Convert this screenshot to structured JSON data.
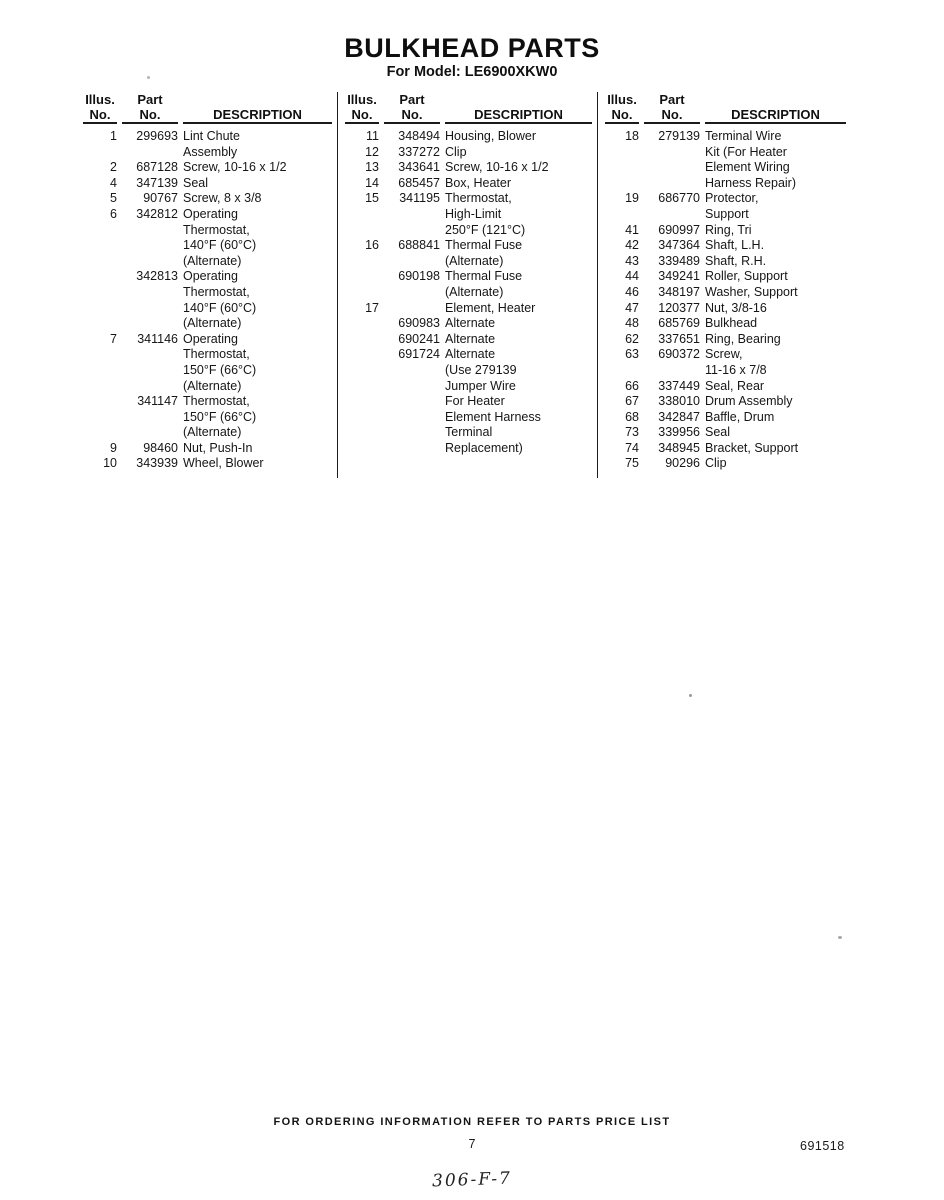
{
  "title": "BULKHEAD PARTS",
  "subtitle": "For Model: LE6900XKW0",
  "table": {
    "headers": {
      "illus_line1": "Illus.",
      "illus_line2": "No.",
      "part_line1": "Part",
      "part_line2": "No.",
      "description": "DESCRIPTION"
    },
    "columns": [
      {
        "rows": [
          {
            "illus": "1",
            "part": "299693",
            "desc": [
              "Lint Chute",
              "Assembly"
            ]
          },
          {
            "illus": "2",
            "part": "687128",
            "desc": [
              "Screw, 10-16 x 1/2"
            ]
          },
          {
            "illus": "4",
            "part": "347139",
            "desc": [
              "Seal"
            ]
          },
          {
            "illus": "5",
            "part": "90767",
            "desc": [
              "Screw, 8 x 3/8"
            ]
          },
          {
            "illus": "6",
            "part": "342812",
            "desc": [
              "Operating",
              "Thermostat,",
              "140°F (60°C)",
              "(Alternate)"
            ]
          },
          {
            "illus": "",
            "part": "342813",
            "desc": [
              "Operating",
              "Thermostat,",
              "140°F (60°C)",
              "(Alternate)"
            ]
          },
          {
            "illus": "7",
            "part": "341146",
            "desc": [
              "Operating",
              "Thermostat,",
              "150°F (66°C)",
              "(Alternate)"
            ]
          },
          {
            "illus": "",
            "part": "341147",
            "desc": [
              "Thermostat,",
              "150°F (66°C)",
              "(Alternate)"
            ]
          },
          {
            "illus": "9",
            "part": "98460",
            "desc": [
              "Nut, Push-In"
            ]
          },
          {
            "illus": "10",
            "part": "343939",
            "desc": [
              "Wheel, Blower"
            ]
          }
        ]
      },
      {
        "rows": [
          {
            "illus": "11",
            "part": "348494",
            "desc": [
              "Housing, Blower"
            ]
          },
          {
            "illus": "12",
            "part": "337272",
            "desc": [
              "Clip"
            ]
          },
          {
            "illus": "13",
            "part": "343641",
            "desc": [
              "Screw, 10-16 x 1/2"
            ]
          },
          {
            "illus": "14",
            "part": "685457",
            "desc": [
              "Box, Heater"
            ]
          },
          {
            "illus": "15",
            "part": "341195",
            "desc": [
              "Thermostat,",
              "High-Limit",
              "250°F (121°C)"
            ]
          },
          {
            "illus": "16",
            "part": "688841",
            "desc": [
              "Thermal Fuse",
              "(Alternate)"
            ]
          },
          {
            "illus": "",
            "part": "690198",
            "desc": [
              "Thermal Fuse",
              "(Alternate)"
            ]
          },
          {
            "illus": "17",
            "part": "",
            "desc": [
              "Element, Heater"
            ]
          },
          {
            "illus": "",
            "part": "690983",
            "desc": [
              "Alternate"
            ]
          },
          {
            "illus": "",
            "part": "690241",
            "desc": [
              "Alternate"
            ]
          },
          {
            "illus": "",
            "part": "691724",
            "desc": [
              "Alternate",
              "(Use 279139",
              "Jumper Wire",
              "For Heater",
              "Element Harness",
              "Terminal",
              "Replacement)"
            ]
          }
        ]
      },
      {
        "rows": [
          {
            "illus": "18",
            "part": "279139",
            "desc": [
              "Terminal Wire",
              "Kit (For Heater",
              "Element Wiring",
              "Harness Repair)"
            ]
          },
          {
            "illus": "19",
            "part": "686770",
            "desc": [
              "Protector,",
              "Support"
            ]
          },
          {
            "illus": "41",
            "part": "690997",
            "desc": [
              "Ring, Tri"
            ]
          },
          {
            "illus": "42",
            "part": "347364",
            "desc": [
              "Shaft, L.H."
            ]
          },
          {
            "illus": "43",
            "part": "339489",
            "desc": [
              "Shaft, R.H."
            ]
          },
          {
            "illus": "44",
            "part": "349241",
            "desc": [
              "Roller, Support"
            ]
          },
          {
            "illus": "46",
            "part": "348197",
            "desc": [
              "Washer, Support"
            ]
          },
          {
            "illus": "47",
            "part": "120377",
            "desc": [
              "Nut, 3/8-16"
            ]
          },
          {
            "illus": "48",
            "part": "685769",
            "desc": [
              "Bulkhead"
            ]
          },
          {
            "illus": "62",
            "part": "337651",
            "desc": [
              "Ring, Bearing"
            ]
          },
          {
            "illus": "63",
            "part": "690372",
            "desc": [
              "Screw,",
              "11-16 x 7/8"
            ]
          },
          {
            "illus": "66",
            "part": "337449",
            "desc": [
              "Seal, Rear"
            ]
          },
          {
            "illus": "67",
            "part": "338010",
            "desc": [
              "Drum Assembly"
            ]
          },
          {
            "illus": "68",
            "part": "342847",
            "desc": [
              "Baffle, Drum"
            ]
          },
          {
            "illus": "73",
            "part": "339956",
            "desc": [
              "Seal"
            ]
          },
          {
            "illus": "74",
            "part": "348945",
            "desc": [
              "Bracket, Support"
            ]
          },
          {
            "illus": "75",
            "part": "90296",
            "desc": [
              "Clip"
            ]
          }
        ]
      }
    ]
  },
  "footer": {
    "note": "FOR ORDERING INFORMATION REFER TO PARTS PRICE LIST",
    "page_number": "7",
    "doc_number": "691518",
    "handwritten": "306-F-7"
  }
}
